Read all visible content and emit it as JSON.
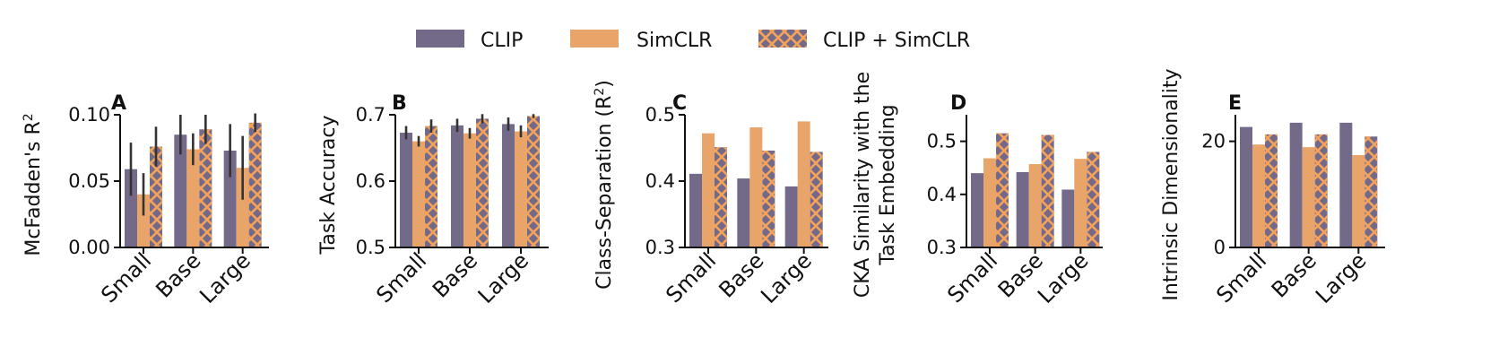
{
  "legend": {
    "items": [
      {
        "label": "CLIP",
        "color": "#736a8a",
        "pattern": "none"
      },
      {
        "label": "SimCLR",
        "color": "#e9a469",
        "pattern": "none"
      },
      {
        "label": "CLIP + SimCLR",
        "color": "#736a8a",
        "pattern": "cross",
        "hatch_color": "#f5a25a"
      }
    ]
  },
  "colors": {
    "clip": "#736a8a",
    "simclr": "#e9a469",
    "hatch": "#f5a25a",
    "error": "#333333",
    "axis": "#111111"
  },
  "chart_data": [
    {
      "type": "bar",
      "panel": "A",
      "ylabel": "McFadden's R",
      "ylabel_sup": "2",
      "categories": [
        "Small",
        "Base",
        "Large"
      ],
      "ylim": [
        0,
        0.1
      ],
      "ticks": [
        0.0,
        0.05,
        0.1
      ],
      "tick_labels": [
        "0.00",
        "0.05",
        "0.10"
      ],
      "series": [
        {
          "name": "CLIP",
          "values": [
            0.059,
            0.085,
            0.073
          ],
          "err": [
            0.02,
            0.015,
            0.02
          ]
        },
        {
          "name": "SimCLR",
          "values": [
            0.04,
            0.074,
            0.06
          ],
          "err": [
            0.016,
            0.012,
            0.024
          ]
        },
        {
          "name": "CLIP + SimCLR",
          "values": [
            0.076,
            0.089,
            0.094
          ],
          "err": [
            0.015,
            0.011,
            0.007
          ]
        }
      ]
    },
    {
      "type": "bar",
      "panel": "B",
      "ylabel": "Task Accuracy",
      "categories": [
        "Small",
        "Base",
        "Large"
      ],
      "ylim": [
        0.5,
        0.7
      ],
      "ticks": [
        0.5,
        0.6,
        0.7
      ],
      "tick_labels": [
        "0.5",
        "0.6",
        "0.7"
      ],
      "series": [
        {
          "name": "CLIP",
          "values": [
            0.673,
            0.684,
            0.686
          ],
          "err": [
            0.01,
            0.01,
            0.01
          ]
        },
        {
          "name": "SimCLR",
          "values": [
            0.66,
            0.672,
            0.675
          ],
          "err": [
            0.008,
            0.008,
            0.009
          ]
        },
        {
          "name": "CLIP + SimCLR",
          "values": [
            0.683,
            0.694,
            0.698
          ],
          "err": [
            0.01,
            0.007,
            0.003
          ]
        }
      ]
    },
    {
      "type": "bar",
      "panel": "C",
      "ylabel": "Class-Separation (R",
      "ylabel_sup": "2",
      "ylabel_suffix": ")",
      "categories": [
        "Small",
        "Base",
        "Large"
      ],
      "ylim": [
        0.3,
        0.5
      ],
      "ticks": [
        0.3,
        0.4,
        0.5
      ],
      "tick_labels": [
        "0.3",
        "0.4",
        "0.5"
      ],
      "series": [
        {
          "name": "CLIP",
          "values": [
            0.411,
            0.404,
            0.392
          ]
        },
        {
          "name": "SimCLR",
          "values": [
            0.472,
            0.481,
            0.49
          ]
        },
        {
          "name": "CLIP + SimCLR",
          "values": [
            0.451,
            0.446,
            0.444
          ]
        }
      ]
    },
    {
      "type": "bar",
      "panel": "D",
      "ylabel": "CKA Similarity with the",
      "ylabel2": "Task Embedding",
      "categories": [
        "Small",
        "Base",
        "Large"
      ],
      "ylim": [
        0.3,
        0.55
      ],
      "ticks": [
        0.3,
        0.4,
        0.5
      ],
      "tick_labels": [
        "0.3",
        "0.4",
        "0.5"
      ],
      "series": [
        {
          "name": "CLIP",
          "values": [
            0.44,
            0.442,
            0.409
          ]
        },
        {
          "name": "SimCLR",
          "values": [
            0.468,
            0.457,
            0.467
          ]
        },
        {
          "name": "CLIP + SimCLR",
          "values": [
            0.515,
            0.512,
            0.48
          ]
        }
      ]
    },
    {
      "type": "bar",
      "panel": "E",
      "ylabel": "Intrinsic Dimensionality",
      "categories": [
        "Small",
        "Base",
        "Large"
      ],
      "ylim": [
        0,
        25
      ],
      "ticks": [
        0,
        20
      ],
      "tick_labels": [
        "0",
        "20"
      ],
      "series": [
        {
          "name": "CLIP",
          "values": [
            22.7,
            23.5,
            23.5
          ]
        },
        {
          "name": "SimCLR",
          "values": [
            19.4,
            18.9,
            17.4
          ]
        },
        {
          "name": "CLIP + SimCLR",
          "values": [
            21.3,
            21.3,
            20.9
          ]
        }
      ]
    }
  ]
}
